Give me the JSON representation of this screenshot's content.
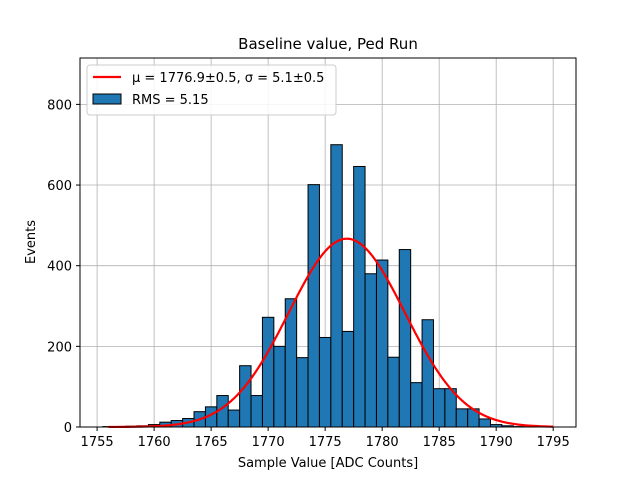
{
  "chart_data": {
    "type": "bar",
    "title": "Baseline value, Ped Run",
    "xlabel": "Sample Value [ADC Counts]",
    "ylabel": "Events",
    "xlim": [
      1753.5,
      1797
    ],
    "ylim": [
      0,
      915
    ],
    "grid": true,
    "legend_placement": "top-left",
    "xticks": [
      1755,
      1760,
      1765,
      1770,
      1775,
      1780,
      1785,
      1790,
      1795
    ],
    "yticks": [
      0,
      200,
      400,
      600,
      800
    ],
    "bin_width": 1,
    "bins": [
      {
        "x": 1756,
        "y": 1
      },
      {
        "x": 1757,
        "y": 1
      },
      {
        "x": 1758,
        "y": 2
      },
      {
        "x": 1759,
        "y": 3
      },
      {
        "x": 1760,
        "y": 6
      },
      {
        "x": 1761,
        "y": 12
      },
      {
        "x": 1762,
        "y": 16
      },
      {
        "x": 1763,
        "y": 21
      },
      {
        "x": 1764,
        "y": 38
      },
      {
        "x": 1765,
        "y": 50
      },
      {
        "x": 1766,
        "y": 78
      },
      {
        "x": 1767,
        "y": 42
      },
      {
        "x": 1768,
        "y": 152
      },
      {
        "x": 1769,
        "y": 78
      },
      {
        "x": 1770,
        "y": 272
      },
      {
        "x": 1771,
        "y": 200
      },
      {
        "x": 1772,
        "y": 318
      },
      {
        "x": 1773,
        "y": 172
      },
      {
        "x": 1774,
        "y": 601
      },
      {
        "x": 1775,
        "y": 222
      },
      {
        "x": 1776,
        "y": 700
      },
      {
        "x": 1777,
        "y": 237
      },
      {
        "x": 1778,
        "y": 646
      },
      {
        "x": 1779,
        "y": 380
      },
      {
        "x": 1780,
        "y": 414
      },
      {
        "x": 1781,
        "y": 173
      },
      {
        "x": 1782,
        "y": 440
      },
      {
        "x": 1783,
        "y": 110
      },
      {
        "x": 1784,
        "y": 266
      },
      {
        "x": 1785,
        "y": 95
      },
      {
        "x": 1786,
        "y": 95
      },
      {
        "x": 1787,
        "y": 45
      },
      {
        "x": 1788,
        "y": 45
      },
      {
        "x": 1789,
        "y": 20
      },
      {
        "x": 1790,
        "y": 6
      },
      {
        "x": 1791,
        "y": 3
      },
      {
        "x": 1792,
        "y": 1
      }
    ],
    "fit": {
      "mu": 1776.9,
      "sigma": 5.1,
      "amplitude": 467,
      "x_range": [
        1756,
        1795
      ]
    },
    "colors": {
      "bar_fill": "#1f77b4",
      "bar_edge": "#000000",
      "fit_line": "#ff0000",
      "grid": "#b0b0b0"
    },
    "legend": {
      "fit_label": "μ = 1776.9±0.5, σ = 5.1±0.5",
      "hist_label": "RMS = 5.15"
    }
  }
}
